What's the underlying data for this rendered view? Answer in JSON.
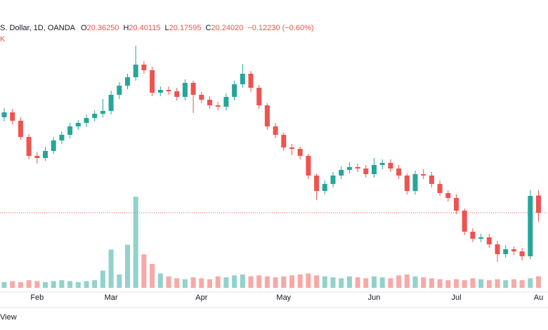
{
  "header": {
    "symbol": "S. Dollar, 1D, OANDA",
    "ohlc": [
      {
        "label": "O",
        "value": "20.36250"
      },
      {
        "label": "H",
        "value": "20.40115"
      },
      {
        "label": "L",
        "value": "20.17595"
      },
      {
        "label": "C",
        "value": "20.24020"
      }
    ],
    "change": "−0.12230 (−0.60%)",
    "second_line": "K"
  },
  "footer": {
    "text": "View"
  },
  "chart_data": {
    "type": "candlestick",
    "up_color": "#26a69a",
    "down_color": "#ef5350",
    "open": [
      20.92,
      20.955,
      20.895,
      20.78,
      20.645,
      20.63,
      20.68,
      20.755,
      20.795,
      20.855,
      20.88,
      20.915,
      20.945,
      20.965,
      21.08,
      21.145,
      21.205,
      21.295,
      21.255,
      21.095,
      21.115,
      21.105,
      21.065,
      21.165,
      21.08,
      21.045,
      21.005,
      20.995,
      21.065,
      21.155,
      21.23,
      21.13,
      21.005,
      20.855,
      20.795,
      20.705,
      20.695,
      20.645,
      20.505,
      20.395,
      20.445,
      20.505,
      20.545,
      20.565,
      20.555,
      20.515,
      20.58,
      20.595,
      20.555,
      20.505,
      20.395,
      20.515,
      20.505,
      20.445,
      20.38,
      20.345,
      20.255,
      20.105,
      20.055,
      20.065,
      20.015,
      19.945,
      19.98,
      19.965,
      19.93,
      20.3625
    ],
    "high": [
      20.985,
      20.98,
      20.92,
      20.8,
      20.67,
      20.71,
      20.78,
      20.82,
      20.88,
      20.9,
      20.94,
      20.97,
      21.05,
      21.11,
      21.17,
      21.23,
      21.43,
      21.32,
      21.28,
      21.14,
      21.14,
      21.13,
      21.19,
      21.18,
      21.1,
      21.07,
      21.03,
      21.09,
      21.18,
      21.3,
      21.25,
      21.15,
      21.02,
      20.88,
      20.81,
      20.73,
      20.71,
      20.66,
      20.52,
      20.47,
      20.53,
      20.57,
      20.6,
      20.59,
      20.58,
      20.63,
      20.62,
      20.62,
      20.58,
      20.52,
      20.54,
      20.55,
      20.53,
      20.47,
      20.4,
      20.37,
      20.27,
      20.13,
      20.09,
      20.09,
      20.04,
      20.01,
      20.0,
      19.99,
      20.4,
      20.40115
    ],
    "low": [
      20.89,
      20.87,
      20.76,
      20.62,
      20.59,
      20.61,
      20.66,
      20.73,
      20.77,
      20.83,
      20.85,
      20.89,
      20.92,
      20.94,
      21.05,
      21.12,
      21.18,
      21.23,
      21.07,
      21.07,
      21.08,
      21.04,
      21.04,
      20.95,
      21.02,
      20.98,
      20.97,
      20.97,
      21.04,
      21.13,
      21.1,
      20.98,
      20.83,
      20.77,
      20.68,
      20.65,
      20.62,
      20.48,
      20.33,
      20.37,
      20.42,
      20.48,
      20.52,
      20.53,
      20.49,
      20.49,
      20.55,
      20.53,
      20.48,
      20.37,
      20.37,
      20.48,
      20.42,
      20.36,
      20.32,
      20.23,
      20.08,
      20.03,
      20.03,
      19.99,
      19.89,
      19.92,
      19.94,
      19.9,
      19.91,
      20.17595
    ],
    "close": [
      20.955,
      20.895,
      20.78,
      20.645,
      20.63,
      20.68,
      20.755,
      20.795,
      20.855,
      20.88,
      20.915,
      20.945,
      20.965,
      21.08,
      21.145,
      21.205,
      21.295,
      21.255,
      21.095,
      21.115,
      21.105,
      21.065,
      21.165,
      21.08,
      21.045,
      21.005,
      20.995,
      21.065,
      21.155,
      21.23,
      21.13,
      21.005,
      20.855,
      20.795,
      20.705,
      20.695,
      20.645,
      20.505,
      20.395,
      20.445,
      20.505,
      20.545,
      20.565,
      20.555,
      20.515,
      20.58,
      20.595,
      20.555,
      20.505,
      20.395,
      20.515,
      20.505,
      20.445,
      20.38,
      20.345,
      20.255,
      20.105,
      20.055,
      20.065,
      20.015,
      19.945,
      19.98,
      19.965,
      19.93,
      20.36,
      20.2402
    ],
    "volume": [
      6,
      7,
      6,
      8,
      7,
      6,
      7,
      8,
      7,
      6,
      7,
      8,
      18,
      40,
      14,
      45,
      95,
      35,
      25,
      15,
      12,
      10,
      9,
      11,
      10,
      9,
      12,
      11,
      13,
      14,
      12,
      13,
      12,
      11,
      12,
      13,
      14,
      15,
      13,
      12,
      11,
      10,
      12,
      11,
      10,
      12,
      11,
      10,
      13,
      14,
      12,
      11,
      10,
      9,
      8,
      9,
      8,
      10,
      9,
      8,
      9,
      8,
      9,
      8,
      10,
      12
    ],
    "ylim": [
      19.705,
      21.755
    ],
    "volume_lim": [
      0,
      300
    ],
    "x_labels": [
      {
        "label": "Feb",
        "index": 4
      },
      {
        "label": "Mar",
        "index": 13
      },
      {
        "label": "Apr",
        "index": 24
      },
      {
        "label": "May",
        "index": 34
      },
      {
        "label": "Jun",
        "index": 45
      },
      {
        "label": "Jul",
        "index": 55
      },
      {
        "label": "Au",
        "index": 65
      }
    ]
  }
}
